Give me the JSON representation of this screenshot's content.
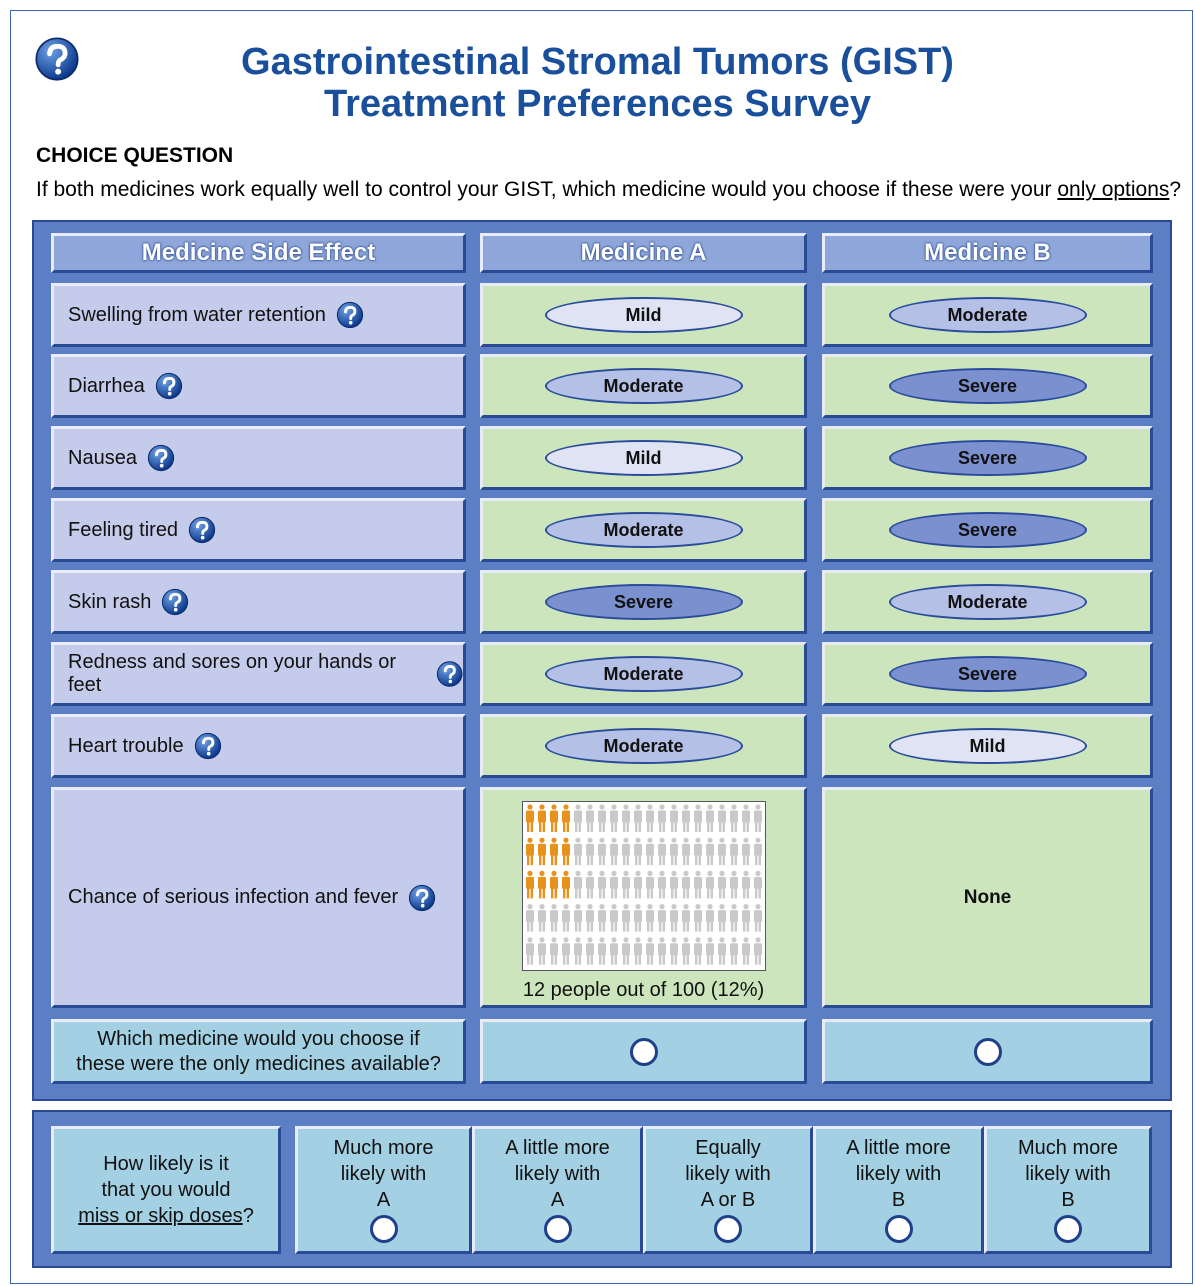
{
  "header": {
    "title": [
      "Gastrointestinal Stromal Tumors (GIST)",
      "Treatment Preferences Survey"
    ]
  },
  "question": {
    "label": "CHOICE QUESTION",
    "text": "If both medicines work equally well to control your GIST, which medicine would you choose if these were your",
    "underlined": "only options",
    "end": "?"
  },
  "table": {
    "headers": [
      "Medicine Side Effect",
      "Medicine A",
      "Medicine B"
    ],
    "rows": [
      {
        "effect": "Swelling from water retention",
        "a": {
          "text": "Mild",
          "color": "#dfe3f4"
        },
        "b": {
          "text": "Moderate",
          "color": "#b4c0e6"
        }
      },
      {
        "effect": "Diarrhea",
        "a": {
          "text": "Moderate",
          "color": "#b4c0e6"
        },
        "b": {
          "text": "Severe",
          "color": "#7b90cf"
        }
      },
      {
        "effect": "Nausea",
        "a": {
          "text": "Mild",
          "color": "#dfe3f4"
        },
        "b": {
          "text": "Severe",
          "color": "#7b90cf"
        }
      },
      {
        "effect": "Feeling tired",
        "a": {
          "text": "Moderate",
          "color": "#b4c0e6"
        },
        "b": {
          "text": "Severe",
          "color": "#7b90cf"
        }
      },
      {
        "effect": "Skin rash",
        "a": {
          "text": "Severe",
          "color": "#7b90cf"
        },
        "b": {
          "text": "Moderate",
          "color": "#b4c0e6"
        }
      },
      {
        "effect": "Redness and sores on your hands or feet",
        "a": {
          "text": "Moderate",
          "color": "#b4c0e6"
        },
        "b": {
          "text": "Severe",
          "color": "#7b90cf"
        }
      },
      {
        "effect": "Heart trouble",
        "a": {
          "text": "Moderate",
          "color": "#b4c0e6"
        },
        "b": {
          "text": "Mild",
          "color": "#dfe3f4"
        }
      }
    ],
    "infection": {
      "effect": "Chance of serious infection and fever",
      "affected": 12,
      "total": 100,
      "affected_color": "#e8921e",
      "other_color": "#c9c9c9",
      "caption": "12 people out of 100 (12%)",
      "b": "None"
    },
    "choice": {
      "text": "Which medicine would you choose if these were the only medicines available?"
    }
  },
  "likelihood": {
    "question": [
      "How likely is it",
      "that you would"
    ],
    "underlined": "miss or skip doses",
    "end": "?",
    "options": [
      [
        "Much more",
        "likely with",
        "A"
      ],
      [
        "A little more",
        "likely with",
        "A"
      ],
      [
        "Equally",
        "likely with",
        "A or B"
      ],
      [
        "A little more",
        "likely with",
        "B"
      ],
      [
        "Much more",
        "likely with",
        "B"
      ]
    ]
  }
}
